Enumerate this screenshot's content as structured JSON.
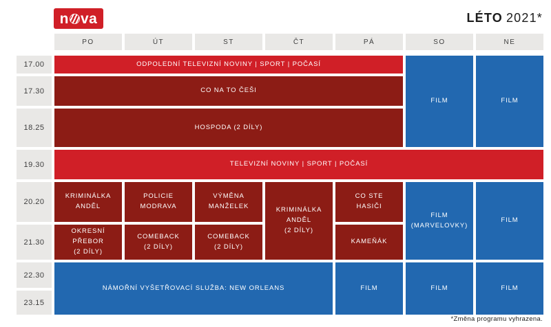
{
  "header": {
    "logo": {
      "text": "nova",
      "left": "n",
      "right": "va"
    },
    "title": "LÉTO",
    "year": "2021*"
  },
  "colors": {
    "bright_red": "#d01f27",
    "dark_red": "#8c1c15",
    "blue": "#2268b0",
    "slot_gray": "#e9e8e6",
    "text_dark": "#3e3e3e",
    "title_dark": "#1c1c1c"
  },
  "footnote": "*Změna programu vyhrazena.",
  "chart_data": {
    "type": "table",
    "title": "LÉTO 2021*",
    "columns": [
      "PO",
      "ÚT",
      "ST",
      "ČT",
      "PÁ",
      "SO",
      "NE"
    ],
    "rows": [
      "17.00",
      "17.30",
      "18.25",
      "19.30",
      "20.20",
      "21.30",
      "22.30",
      "23.15"
    ],
    "cells": [
      {
        "label": "ODPOLEDNÍ TELEVIZNÍ NOVINY | SPORT | POČASÍ",
        "time": "17.00",
        "days": "PO–PÁ",
        "category": "news"
      },
      {
        "label": "FILM",
        "time": "17.00–18.25",
        "days": "SO",
        "category": "film"
      },
      {
        "label": "FILM",
        "time": "17.00–18.25",
        "days": "NE",
        "category": "film"
      },
      {
        "label": "CO NA TO ČEŠI",
        "time": "17.30",
        "days": "PO–PÁ",
        "category": "show"
      },
      {
        "label": "HOSPODA (2 DÍLY)",
        "time": "18.25",
        "days": "PO–PÁ",
        "category": "show"
      },
      {
        "label": "TELEVIZNÍ NOVINY | SPORT | POČASÍ",
        "time": "19.30",
        "days": "PO–NE",
        "category": "news"
      },
      {
        "label": "KRIMINÁLKA\nANDĚL",
        "time": "20.20",
        "days": "PO",
        "category": "show"
      },
      {
        "label": "POLICIE\nMODRAVA",
        "time": "20.20",
        "days": "ÚT",
        "category": "show"
      },
      {
        "label": "VÝMĚNA\nMANŽELEK",
        "time": "20.20",
        "days": "ST",
        "category": "show"
      },
      {
        "label": "KRIMINÁLKA\nANDĚL\n(2 DÍLY)",
        "time": "20.20–21.30",
        "days": "ČT",
        "category": "show"
      },
      {
        "label": "CO STE\nHASIČI",
        "time": "20.20",
        "days": "PÁ",
        "category": "show"
      },
      {
        "label": "FILM\n(MARVELOVKY)",
        "time": "20.20–21.30",
        "days": "SO",
        "category": "film"
      },
      {
        "label": "FILM",
        "time": "20.20–21.30",
        "days": "NE",
        "category": "film"
      },
      {
        "label": "OKRESNÍ PŘEBOR\n(2 DÍLY)",
        "time": "21.30",
        "days": "PO",
        "category": "show"
      },
      {
        "label": "COMEBACK\n(2 DÍLY)",
        "time": "21.30",
        "days": "ÚT",
        "category": "show"
      },
      {
        "label": "COMEBACK\n(2 DÍLY)",
        "time": "21.30",
        "days": "ST",
        "category": "show"
      },
      {
        "label": "KAMEŇÁK",
        "time": "21.30",
        "days": "PÁ",
        "category": "show"
      },
      {
        "label": "NÁMOŘNÍ VYŠETŘOVACÍ SLUŽBA: NEW ORLEANS",
        "time": "22.30–23.15",
        "days": "PO–ČT",
        "category": "film"
      },
      {
        "label": "FILM",
        "time": "22.30–23.15",
        "days": "PÁ",
        "category": "film"
      },
      {
        "label": "FILM",
        "time": "22.30–23.15",
        "days": "SO",
        "category": "film"
      },
      {
        "label": "FILM",
        "time": "22.30–23.15",
        "days": "NE",
        "category": "film"
      }
    ]
  }
}
